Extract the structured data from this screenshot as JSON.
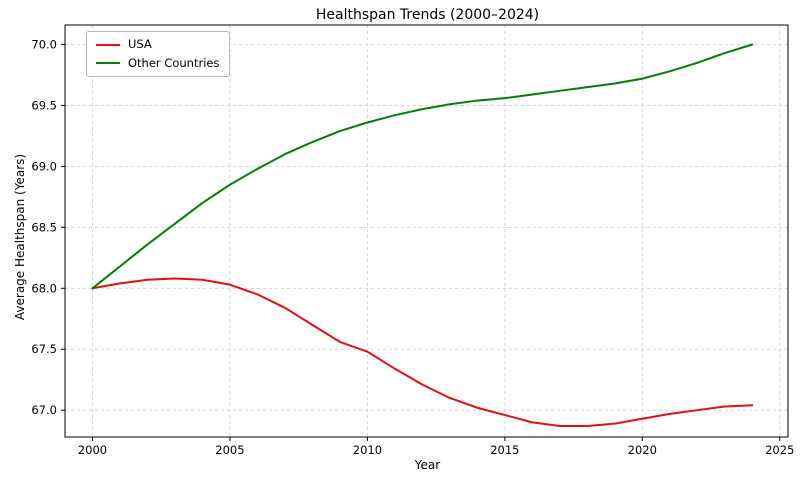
{
  "chart_data": {
    "type": "line",
    "title": "Healthspan Trends (2000–2024)",
    "xlabel": "Year",
    "ylabel": "Average Healthspan (Years)",
    "xlim": [
      1999,
      2025.3
    ],
    "ylim": [
      66.78,
      70.16
    ],
    "xticks": [
      2000,
      2005,
      2010,
      2015,
      2020,
      2025
    ],
    "xtick_labels": [
      "2000",
      "2005",
      "2010",
      "2015",
      "2020",
      "2025"
    ],
    "yticks": [
      67.0,
      67.5,
      68.0,
      68.5,
      69.0,
      69.5,
      70.0
    ],
    "ytick_labels": [
      "67.0",
      "67.5",
      "68.0",
      "68.5",
      "69.0",
      "69.5",
      "70.0"
    ],
    "grid": true,
    "legend_position": "upper-left",
    "x": [
      2000,
      2001,
      2002,
      2003,
      2004,
      2005,
      2006,
      2007,
      2008,
      2009,
      2010,
      2011,
      2012,
      2013,
      2014,
      2015,
      2016,
      2017,
      2018,
      2019,
      2020,
      2021,
      2022,
      2023,
      2024
    ],
    "series": [
      {
        "name": "USA",
        "color": "#e31010",
        "values": [
          68.0,
          68.04,
          68.07,
          68.08,
          68.07,
          68.03,
          67.95,
          67.84,
          67.7,
          67.56,
          67.48,
          67.34,
          67.21,
          67.1,
          67.02,
          66.96,
          66.9,
          66.87,
          66.87,
          66.89,
          66.93,
          66.97,
          67.0,
          67.03,
          67.04
        ]
      },
      {
        "name": "Other Countries",
        "color": "#008000",
        "values": [
          68.0,
          68.18,
          68.36,
          68.53,
          68.7,
          68.85,
          68.98,
          69.1,
          69.2,
          69.29,
          69.36,
          69.42,
          69.47,
          69.51,
          69.54,
          69.56,
          69.59,
          69.62,
          69.65,
          69.68,
          69.72,
          69.78,
          69.85,
          69.93,
          70.0
        ]
      }
    ]
  }
}
